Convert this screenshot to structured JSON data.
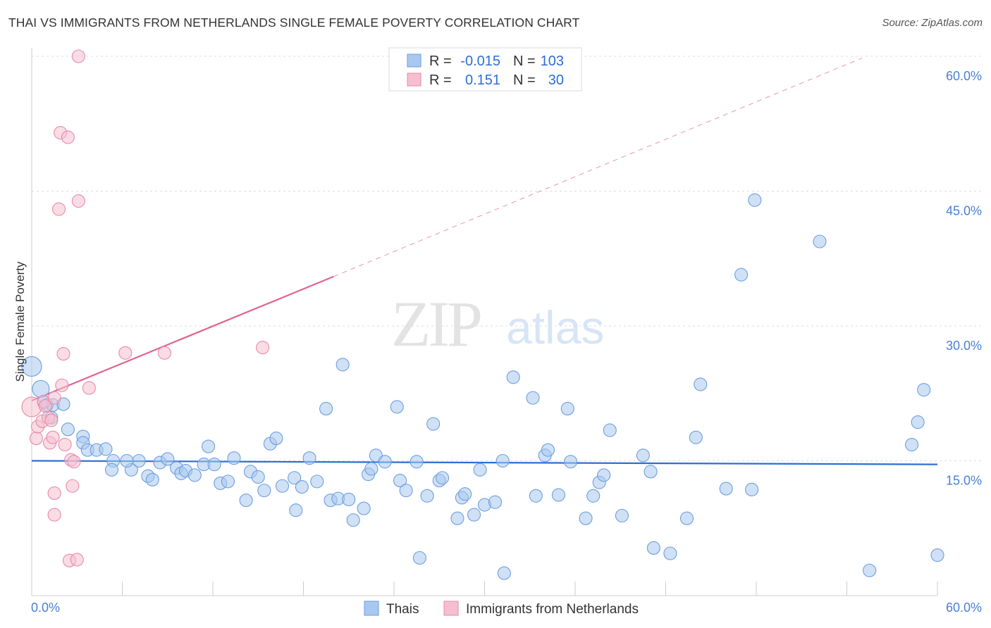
{
  "title": "THAI VS IMMIGRANTS FROM NETHERLANDS SINGLE FEMALE POVERTY CORRELATION CHART",
  "source": "Source: ZipAtlas.com",
  "watermark": {
    "zip": "ZIP",
    "atlas": "atlas"
  },
  "colors": {
    "blue_fill": "#a9c8ef",
    "blue_stroke": "#6a9ee0",
    "blue_line": "#2a6fd6",
    "pink_fill": "#f5bfd0",
    "pink_stroke": "#e88aa8",
    "pink_line": "#e0658f",
    "tick_text": "#4a7fd4",
    "grid": "#dddddd"
  },
  "legend_stats": {
    "r_label": "R =",
    "n_label": "N =",
    "rows": [
      {
        "series": "Thais",
        "r": "-0.015",
        "n": "103"
      },
      {
        "series": "Immigrants from Netherlands",
        "r": "0.151",
        "n": "30"
      }
    ]
  },
  "chart_data": {
    "type": "scatter",
    "xlabel": "",
    "ylabel": "Single Female Poverty",
    "xlim": [
      0,
      60
    ],
    "ylim": [
      0,
      60
    ],
    "x_tick_labels": [
      "0.0%",
      "60.0%"
    ],
    "y_ticks": [
      15,
      30,
      45,
      60
    ],
    "y_tick_labels": [
      "15.0%",
      "30.0%",
      "45.0%",
      "60.0%"
    ],
    "grid": true,
    "legend_position": "top-center and bottom",
    "series": [
      {
        "name": "Thais",
        "trend": {
          "x0": 0,
          "y0": 15.0,
          "x1": 60,
          "y1": 14.6,
          "style": "solid"
        },
        "points": [
          [
            0.0,
            25.5,
            14
          ],
          [
            0.6,
            23.0,
            12
          ],
          [
            0.8,
            21.5,
            9
          ],
          [
            1.0,
            21.2,
            9
          ],
          [
            1.4,
            21.2,
            9
          ],
          [
            2.1,
            21.3,
            9
          ],
          [
            1.3,
            19.8,
            9
          ],
          [
            2.4,
            18.5,
            9
          ],
          [
            3.4,
            17.7,
            9
          ],
          [
            3.4,
            17.0,
            9
          ],
          [
            3.7,
            16.2,
            9
          ],
          [
            4.3,
            16.2,
            9
          ],
          [
            4.9,
            16.3,
            9
          ],
          [
            5.4,
            15.0,
            9
          ],
          [
            5.3,
            14.0,
            9
          ],
          [
            6.6,
            14.0,
            9
          ],
          [
            7.1,
            15.0,
            9
          ],
          [
            6.3,
            15.0,
            9
          ],
          [
            7.7,
            13.3,
            9
          ],
          [
            8.0,
            12.9,
            9
          ],
          [
            8.5,
            14.8,
            9
          ],
          [
            9.0,
            15.2,
            9
          ],
          [
            9.6,
            14.2,
            9
          ],
          [
            9.9,
            13.6,
            9
          ],
          [
            10.2,
            13.9,
            9
          ],
          [
            10.8,
            13.4,
            9
          ],
          [
            11.4,
            14.6,
            9
          ],
          [
            11.7,
            16.6,
            9
          ],
          [
            12.1,
            14.6,
            9
          ],
          [
            12.5,
            12.5,
            9
          ],
          [
            13.0,
            12.7,
            9
          ],
          [
            13.4,
            15.3,
            9
          ],
          [
            14.2,
            10.6,
            9
          ],
          [
            14.5,
            13.8,
            9
          ],
          [
            15.0,
            13.2,
            9
          ],
          [
            15.4,
            11.7,
            9
          ],
          [
            15.8,
            16.9,
            9
          ],
          [
            16.2,
            17.5,
            9
          ],
          [
            16.6,
            12.2,
            9
          ],
          [
            17.4,
            13.1,
            9
          ],
          [
            17.5,
            9.5,
            9
          ],
          [
            17.9,
            12.1,
            9
          ],
          [
            18.4,
            15.3,
            9
          ],
          [
            18.9,
            12.7,
            9
          ],
          [
            19.5,
            20.8,
            9
          ],
          [
            19.8,
            10.6,
            9
          ],
          [
            20.3,
            10.8,
            9
          ],
          [
            20.6,
            25.7,
            9
          ],
          [
            21.0,
            10.7,
            9
          ],
          [
            21.3,
            8.4,
            9
          ],
          [
            22.0,
            9.7,
            9
          ],
          [
            22.3,
            13.5,
            9
          ],
          [
            22.5,
            14.1,
            9
          ],
          [
            22.8,
            15.6,
            9
          ],
          [
            23.4,
            14.9,
            9
          ],
          [
            24.2,
            21.0,
            9
          ],
          [
            24.4,
            12.8,
            9
          ],
          [
            24.8,
            11.7,
            9
          ],
          [
            25.5,
            14.9,
            9
          ],
          [
            25.7,
            4.2,
            9
          ],
          [
            26.2,
            11.1,
            9
          ],
          [
            26.6,
            19.1,
            9
          ],
          [
            27.0,
            12.8,
            9
          ],
          [
            27.2,
            13.1,
            9
          ],
          [
            28.2,
            8.6,
            9
          ],
          [
            28.5,
            10.9,
            9
          ],
          [
            28.7,
            11.3,
            9
          ],
          [
            29.3,
            9.0,
            9
          ],
          [
            29.7,
            14.0,
            9
          ],
          [
            30.0,
            10.1,
            9
          ],
          [
            30.7,
            10.4,
            9
          ],
          [
            31.2,
            15.0,
            9
          ],
          [
            31.3,
            2.5,
            9
          ],
          [
            31.9,
            24.3,
            9
          ],
          [
            33.2,
            22.0,
            9
          ],
          [
            33.4,
            11.1,
            9
          ],
          [
            34.0,
            15.6,
            9
          ],
          [
            34.2,
            16.2,
            9
          ],
          [
            35.5,
            20.8,
            9
          ],
          [
            35.7,
            14.9,
            9
          ],
          [
            34.9,
            11.2,
            9
          ],
          [
            36.7,
            8.6,
            9
          ],
          [
            37.2,
            11.1,
            9
          ],
          [
            37.6,
            12.6,
            9
          ],
          [
            37.9,
            13.4,
            9
          ],
          [
            38.3,
            18.4,
            9
          ],
          [
            39.1,
            8.9,
            9
          ],
          [
            40.5,
            15.6,
            9
          ],
          [
            41.0,
            13.8,
            9
          ],
          [
            41.2,
            5.3,
            9
          ],
          [
            42.3,
            4.7,
            9
          ],
          [
            43.4,
            8.6,
            9
          ],
          [
            44.0,
            17.6,
            9
          ],
          [
            44.3,
            23.5,
            9
          ],
          [
            46.0,
            11.9,
            9
          ],
          [
            47.0,
            35.7,
            9
          ],
          [
            47.7,
            11.8,
            9
          ],
          [
            47.9,
            44.0,
            9
          ],
          [
            52.2,
            39.4,
            9
          ],
          [
            55.5,
            2.8,
            9
          ],
          [
            58.3,
            16.8,
            9
          ],
          [
            58.7,
            19.3,
            9
          ],
          [
            59.1,
            22.9,
            9
          ],
          [
            62.9,
            4.5,
            9
          ]
        ]
      },
      {
        "name": "Immigrants from Netherlands",
        "trend": {
          "x0": 0,
          "y0": 21.7,
          "x1": 20,
          "y1": 35.5,
          "x_dash_end": 55,
          "y_dash_end": 59.8,
          "style": "solid-then-dashed"
        },
        "points": [
          [
            0.0,
            21.0,
            14
          ],
          [
            0.3,
            17.5,
            9
          ],
          [
            0.4,
            18.8,
            9
          ],
          [
            0.7,
            19.4,
            9
          ],
          [
            0.8,
            21.6,
            9
          ],
          [
            0.9,
            21.1,
            9
          ],
          [
            1.1,
            19.8,
            9
          ],
          [
            1.2,
            17.0,
            9
          ],
          [
            1.3,
            19.5,
            9
          ],
          [
            1.4,
            17.6,
            9
          ],
          [
            1.5,
            22.0,
            9
          ],
          [
            1.5,
            11.4,
            9
          ],
          [
            1.5,
            9.0,
            9
          ],
          [
            1.8,
            43.0,
            9
          ],
          [
            1.9,
            51.5,
            9
          ],
          [
            2.0,
            23.4,
            9
          ],
          [
            2.1,
            26.9,
            9
          ],
          [
            2.2,
            16.8,
            9
          ],
          [
            2.4,
            51.0,
            9
          ],
          [
            2.5,
            3.9,
            9
          ],
          [
            2.6,
            15.1,
            9
          ],
          [
            2.7,
            12.2,
            9
          ],
          [
            2.8,
            14.9,
            9
          ],
          [
            3.0,
            4.0,
            9
          ],
          [
            3.1,
            60.0,
            9
          ],
          [
            3.1,
            43.9,
            9
          ],
          [
            3.8,
            23.1,
            9
          ],
          [
            6.2,
            27.0,
            9
          ],
          [
            8.8,
            27.0,
            9
          ],
          [
            15.3,
            27.6,
            9
          ]
        ]
      }
    ]
  },
  "bottom_legend": [
    "Thais",
    "Immigrants from Netherlands"
  ]
}
